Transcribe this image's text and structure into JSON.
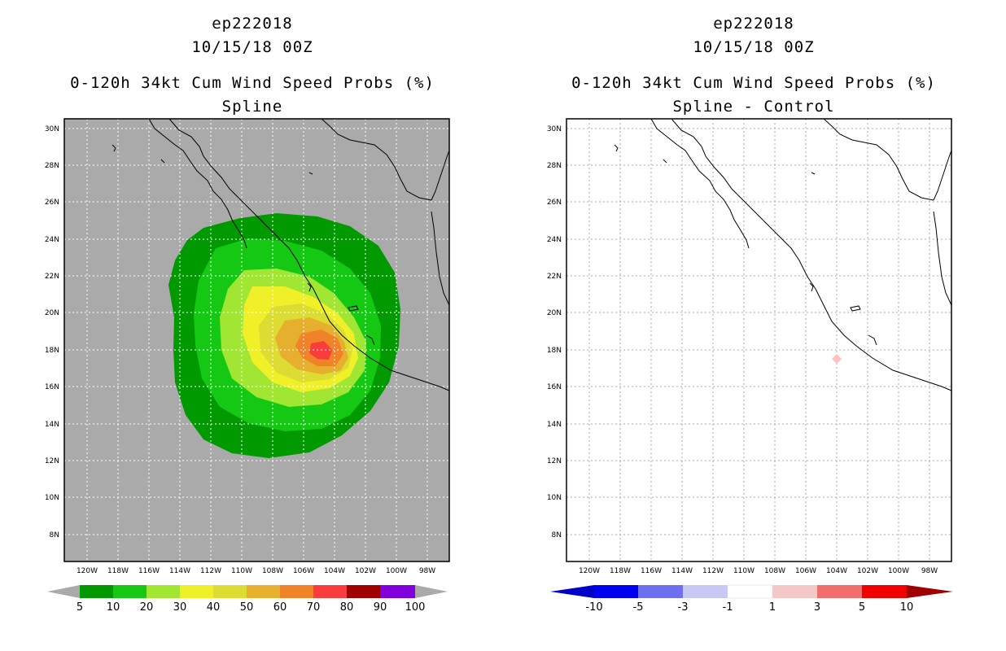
{
  "colors": {
    "land_sea_bg": "#aaaaaa",
    "prob_5": "#009a00",
    "prob_10": "#14c814",
    "prob_20": "#a0e632",
    "prob_30": "#f0f028",
    "prob_40": "#dcdc32",
    "prob_50": "#e6af2d",
    "prob_60": "#f08228",
    "prob_70": "#fa3c3c",
    "prob_80": "#a00000",
    "prob_90": "#8200dc",
    "diff_pos_small": "#ffc0c0"
  },
  "left_panel": {
    "storm_id": "ep222018",
    "init_time": "10/15/18 00Z",
    "title": "0-120h 34kt Cum Wind Speed Probs (%)",
    "subtitle": "Spline",
    "lat_labels": [
      "30N",
      "28N",
      "26N",
      "24N",
      "22N",
      "20N",
      "18N",
      "16N",
      "14N",
      "12N",
      "10N",
      "8N"
    ],
    "lon_labels": [
      "120W",
      "118W",
      "116W",
      "114W",
      "112W",
      "110W",
      "108W",
      "106W",
      "104W",
      "102W",
      "100W",
      "98W"
    ],
    "colorbar": {
      "labels": [
        "5",
        "10",
        "20",
        "30",
        "40",
        "50",
        "60",
        "70",
        "80",
        "90",
        "100"
      ],
      "colors": [
        "#009a00",
        "#14c814",
        "#a0e632",
        "#f0f028",
        "#dcdc32",
        "#e6af2d",
        "#f08228",
        "#fa3c3c",
        "#a00000",
        "#8200dc"
      ]
    }
  },
  "right_panel": {
    "storm_id": "ep222018",
    "init_time": "10/15/18 00Z",
    "title": "0-120h 34kt Cum Wind Speed Probs (%)",
    "subtitle": "Spline - Control",
    "lat_labels": [
      "30N",
      "28N",
      "26N",
      "24N",
      "22N",
      "20N",
      "18N",
      "16N",
      "14N",
      "12N",
      "10N",
      "8N"
    ],
    "lon_labels": [
      "120W",
      "118W",
      "116W",
      "114W",
      "112W",
      "110W",
      "108W",
      "106W",
      "104W",
      "102W",
      "100W",
      "98W"
    ],
    "colorbar": {
      "labels": [
        "-10",
        "-5",
        "-3",
        "-1",
        "1",
        "3",
        "5",
        "10"
      ],
      "colors": [
        "#0000c8",
        "#0000f0",
        "#6e6ef0",
        "#c8c8f5",
        "#ffffff",
        "#f5c8c8",
        "#f06e6e",
        "#f00000",
        "#f00000"
      ]
    }
  }
}
